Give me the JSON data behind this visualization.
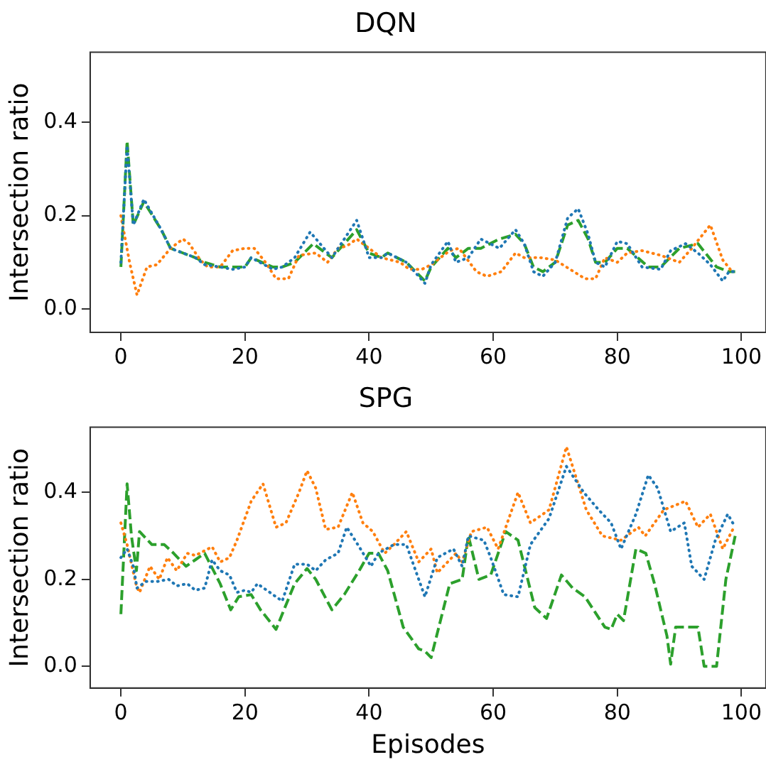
{
  "chart_data": [
    {
      "type": "line",
      "title": "DQN",
      "ylabel": "Intersection ratio",
      "xlim": [
        -4.95,
        103.95
      ],
      "ylim": [
        -0.05,
        0.55
      ],
      "xticks": [
        0,
        20,
        40,
        60,
        80,
        100
      ],
      "yticks": [
        {
          "value": 0,
          "label": "0.0"
        },
        {
          "value": 0.2,
          "label": "0.2"
        },
        {
          "value": 0.4,
          "label": "0.4"
        }
      ],
      "grid": false,
      "legend": false,
      "marker": "none",
      "series": [
        {
          "color": "#1f77b4",
          "line_style": "dotted",
          "x": [
            0,
            1,
            2,
            3.7,
            6.5,
            8,
            10,
            12,
            13.5,
            16,
            18,
            20,
            21,
            24.5,
            26,
            28,
            30.5,
            34,
            38,
            40,
            42,
            43,
            46,
            49,
            50,
            52.7,
            54,
            56,
            58,
            61,
            63.6,
            65,
            66.5,
            68,
            70,
            72,
            73.7,
            75.3,
            76.5,
            78,
            80,
            81.6,
            84,
            87,
            88.6,
            91,
            93,
            95,
            97,
            98,
            99
          ],
          "values": [
            0.1,
            0.35,
            0.18,
            0.235,
            0.17,
            0.13,
            0.12,
            0.11,
            0.095,
            0.09,
            0.085,
            0.09,
            0.11,
            0.085,
            0.09,
            0.11,
            0.165,
            0.11,
            0.19,
            0.11,
            0.11,
            0.12,
            0.1,
            0.055,
            0.095,
            0.145,
            0.1,
            0.11,
            0.15,
            0.13,
            0.17,
            0.14,
            0.08,
            0.07,
            0.1,
            0.195,
            0.215,
            0.16,
            0.1,
            0.09,
            0.145,
            0.14,
            0.09,
            0.085,
            0.125,
            0.14,
            0.12,
            0.095,
            0.06,
            0.08,
            0.08
          ]
        },
        {
          "color": "#ff7f0e",
          "line_style": "dotted",
          "x": [
            0,
            1.4,
            2.6,
            4.2,
            5.8,
            8,
            10,
            11,
            12.8,
            14,
            16,
            18,
            20,
            21.5,
            23.3,
            25,
            27,
            28.7,
            31.4,
            33.3,
            35,
            36.4,
            38,
            40,
            42,
            45,
            46.5,
            48.5,
            50,
            53,
            54.5,
            57.3,
            59,
            61.3,
            63.6,
            65,
            67.6,
            70,
            73,
            74.8,
            76.5,
            78,
            80,
            81.6,
            84,
            87,
            90,
            92,
            95,
            97,
            98.5
          ],
          "values": [
            0.2,
            0.1,
            0.03,
            0.09,
            0.095,
            0.13,
            0.15,
            0.14,
            0.105,
            0.09,
            0.09,
            0.125,
            0.13,
            0.13,
            0.1,
            0.065,
            0.065,
            0.115,
            0.12,
            0.1,
            0.13,
            0.135,
            0.15,
            0.13,
            0.11,
            0.1,
            0.085,
            0.085,
            0.095,
            0.125,
            0.13,
            0.08,
            0.07,
            0.08,
            0.12,
            0.11,
            0.11,
            0.105,
            0.08,
            0.065,
            0.065,
            0.11,
            0.1,
            0.12,
            0.125,
            0.115,
            0.1,
            0.13,
            0.18,
            0.105,
            0.08
          ]
        },
        {
          "color": "#2ca02c",
          "line_style": "dashed",
          "x": [
            0,
            1,
            2,
            3.7,
            6.5,
            8,
            10,
            12,
            13.5,
            16,
            18,
            20,
            21,
            24.5,
            26,
            28,
            31,
            34,
            38,
            40,
            42,
            43,
            46,
            49,
            50,
            52.7,
            54,
            56,
            58,
            61,
            63.6,
            65,
            66.5,
            68,
            70,
            72,
            73.7,
            75.3,
            76.5,
            78,
            80,
            81.6,
            85,
            87,
            90,
            93,
            96,
            98,
            99
          ],
          "values": [
            0.09,
            0.36,
            0.18,
            0.23,
            0.17,
            0.13,
            0.12,
            0.11,
            0.1,
            0.09,
            0.09,
            0.09,
            0.11,
            0.09,
            0.09,
            0.1,
            0.14,
            0.11,
            0.17,
            0.12,
            0.11,
            0.12,
            0.1,
            0.06,
            0.09,
            0.13,
            0.11,
            0.13,
            0.13,
            0.15,
            0.16,
            0.14,
            0.09,
            0.08,
            0.1,
            0.18,
            0.19,
            0.15,
            0.1,
            0.1,
            0.13,
            0.13,
            0.09,
            0.09,
            0.13,
            0.14,
            0.09,
            0.08,
            0.08
          ]
        }
      ]
    },
    {
      "type": "line",
      "title": "SPG",
      "xlabel": "Episodes",
      "ylabel": "Intersection ratio",
      "xlim": [
        -4.95,
        103.95
      ],
      "ylim": [
        -0.05,
        0.55
      ],
      "xticks": [
        0,
        20,
        40,
        60,
        80,
        100
      ],
      "yticks": [
        {
          "value": 0,
          "label": "0.0"
        },
        {
          "value": 0.2,
          "label": "0.2"
        },
        {
          "value": 0.4,
          "label": "0.4"
        }
      ],
      "grid": false,
      "legend": false,
      "marker": "none",
      "series": [
        {
          "color": "#1f77b4",
          "line_style": "dotted",
          "x": [
            0,
            1,
            2,
            2.6,
            4,
            5.8,
            7.7,
            9,
            10.7,
            12,
            13.5,
            14.7,
            16,
            17.5,
            18.7,
            20,
            21,
            22,
            24,
            26,
            28,
            30,
            31.4,
            33,
            35,
            36.4,
            38.4,
            40.3,
            41.5,
            44,
            46,
            49,
            51,
            53.6,
            55,
            56,
            58.5,
            59.6,
            61.7,
            64,
            66,
            69,
            71.8,
            74.6,
            77,
            79,
            80.6,
            83,
            85,
            86.5,
            88.6,
            90.8,
            92,
            94,
            95.8,
            97.8,
            99
          ],
          "values": [
            0.25,
            0.27,
            0.23,
            0.18,
            0.195,
            0.195,
            0.2,
            0.185,
            0.19,
            0.175,
            0.18,
            0.245,
            0.22,
            0.21,
            0.17,
            0.175,
            0.17,
            0.19,
            0.17,
            0.15,
            0.235,
            0.235,
            0.22,
            0.245,
            0.26,
            0.32,
            0.275,
            0.23,
            0.26,
            0.28,
            0.28,
            0.16,
            0.25,
            0.27,
            0.23,
            0.3,
            0.29,
            0.25,
            0.165,
            0.16,
            0.28,
            0.34,
            0.46,
            0.4,
            0.36,
            0.33,
            0.27,
            0.35,
            0.44,
            0.41,
            0.31,
            0.33,
            0.23,
            0.2,
            0.29,
            0.35,
            0.32
          ]
        },
        {
          "color": "#ff7f0e",
          "line_style": "dotted",
          "x": [
            0,
            1,
            2.5,
            3,
            4.7,
            6.2,
            7.5,
            9,
            10.7,
            12,
            14.7,
            16,
            17.5,
            18.7,
            21,
            22.9,
            25,
            26.6,
            28.7,
            30,
            31.4,
            33,
            35,
            37.3,
            39,
            40.6,
            42.5,
            44,
            46,
            48,
            50,
            51,
            54,
            55,
            56.5,
            59,
            60.8,
            64,
            66,
            69,
            71.8,
            75,
            77.6,
            80.6,
            83.4,
            84.5,
            87.5,
            91,
            93,
            95,
            97,
            98.8
          ],
          "values": [
            0.33,
            0.28,
            0.185,
            0.17,
            0.23,
            0.2,
            0.25,
            0.22,
            0.26,
            0.255,
            0.275,
            0.24,
            0.25,
            0.29,
            0.38,
            0.42,
            0.32,
            0.33,
            0.4,
            0.45,
            0.41,
            0.315,
            0.32,
            0.4,
            0.33,
            0.31,
            0.26,
            0.28,
            0.31,
            0.24,
            0.27,
            0.215,
            0.26,
            0.24,
            0.31,
            0.32,
            0.27,
            0.4,
            0.33,
            0.36,
            0.505,
            0.36,
            0.3,
            0.29,
            0.32,
            0.3,
            0.36,
            0.38,
            0.32,
            0.35,
            0.27,
            0.32
          ]
        },
        {
          "color": "#2ca02c",
          "line_style": "dashed",
          "x": [
            0,
            1,
            1.7,
            2.5,
            3,
            5,
            7,
            8.5,
            10.5,
            12,
            13.5,
            16,
            17.7,
            19,
            21,
            22.5,
            25,
            26,
            28,
            30,
            31.4,
            34,
            36,
            38.4,
            40,
            41.5,
            43,
            45.5,
            48,
            49,
            50,
            53,
            55,
            56,
            57.7,
            59.6,
            62,
            64,
            66.7,
            68.6,
            71,
            72.8,
            74.8,
            78,
            79,
            80,
            81,
            83,
            84.6,
            86,
            88,
            88.6,
            89.4,
            93,
            94,
            96,
            97.5,
            99
          ],
          "values": [
            0.12,
            0.42,
            0.3,
            0.22,
            0.31,
            0.28,
            0.28,
            0.26,
            0.23,
            0.245,
            0.26,
            0.19,
            0.13,
            0.16,
            0.165,
            0.13,
            0.085,
            0.12,
            0.19,
            0.225,
            0.2,
            0.13,
            0.165,
            0.22,
            0.26,
            0.26,
            0.22,
            0.09,
            0.04,
            0.035,
            0.02,
            0.19,
            0.2,
            0.3,
            0.2,
            0.21,
            0.31,
            0.29,
            0.135,
            0.11,
            0.21,
            0.18,
            0.16,
            0.09,
            0.085,
            0.12,
            0.105,
            0.27,
            0.26,
            0.19,
            0.07,
            0.005,
            0.09,
            0.09,
            0.0,
            0.0,
            0.2,
            0.3
          ]
        }
      ]
    }
  ]
}
